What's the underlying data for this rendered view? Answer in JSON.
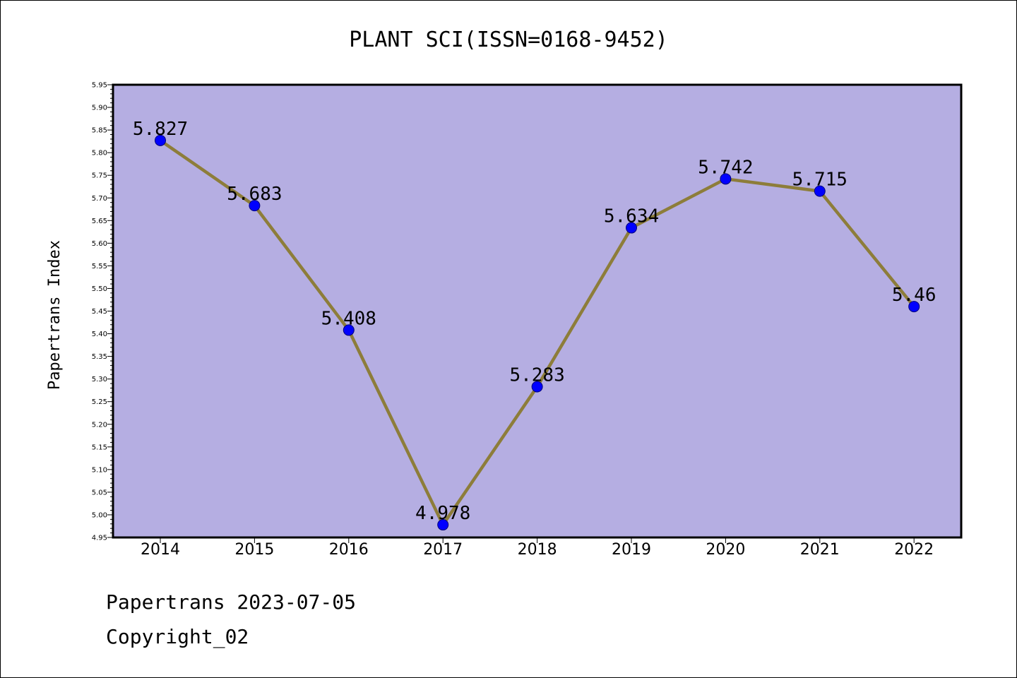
{
  "chart_data": {
    "type": "line",
    "title": "PLANT SCI(ISSN=0168-9452)",
    "xlabel": "",
    "ylabel": "Papertrans Index",
    "categories": [
      "2014",
      "2015",
      "2016",
      "2017",
      "2018",
      "2019",
      "2020",
      "2021",
      "2022"
    ],
    "values": [
      5.827,
      5.683,
      5.408,
      4.978,
      5.283,
      5.634,
      5.742,
      5.715,
      5.46
    ],
    "data_labels": [
      "5.827",
      "5.683",
      "5.408",
      "4.978",
      "5.283",
      "5.634",
      "5.742",
      "5.715",
      "5.46"
    ],
    "ylim": [
      4.95,
      5.95
    ],
    "yticks": [
      "4.95",
      "5.00",
      "5.05",
      "5.10",
      "5.15",
      "5.20",
      "5.25",
      "5.30",
      "5.35",
      "5.40",
      "5.45",
      "5.50",
      "5.55",
      "5.60",
      "5.65",
      "5.70",
      "5.75",
      "5.80",
      "5.85",
      "5.90",
      "5.95"
    ],
    "grid": false,
    "legend": "none",
    "colors": {
      "plot_background": "#b5aee2",
      "line": "#8d7d3a",
      "marker": "#0000ff",
      "marker_edge": "#00007a"
    }
  },
  "footer": {
    "line1": "Papertrans 2023-07-05",
    "line2": "Copyright_02"
  }
}
